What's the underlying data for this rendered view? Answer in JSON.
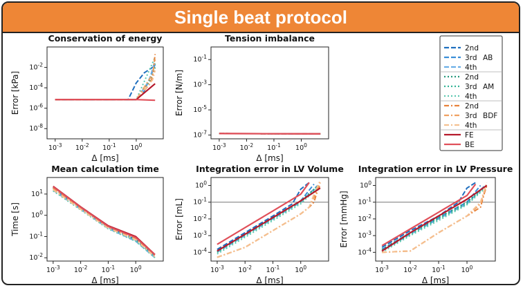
{
  "banner": {
    "title": "Single beat protocol",
    "color": "#ee8636"
  },
  "legend": {
    "entries": [
      {
        "label": "2nd",
        "series": "AB2"
      },
      {
        "label": "3rd",
        "series": "AB3",
        "group": "AB"
      },
      {
        "label": "4th",
        "series": "AB4"
      },
      {
        "label": "2nd",
        "series": "AM2"
      },
      {
        "label": "3rd",
        "series": "AM3",
        "group": "AM"
      },
      {
        "label": "4th",
        "series": "AM4"
      },
      {
        "label": "2nd",
        "series": "BDF2"
      },
      {
        "label": "3rd",
        "series": "BDF3",
        "group": "BDF"
      },
      {
        "label": "4th",
        "series": "BDF4"
      },
      {
        "label": "FE",
        "series": "FE"
      },
      {
        "label": "BE",
        "series": "BE"
      }
    ]
  },
  "chart_data": [
    {
      "id": "energy",
      "type": "line",
      "title": "Conservation of energy",
      "xlabel": "Δ  [ms]",
      "ylabel": "Error [kPa]",
      "xscale": "log",
      "yscale": "log",
      "xlim": [
        0.0005,
        10
      ],
      "ylim": [
        1e-09,
        1
      ],
      "xticks": [
        "10^-3",
        "10^-2",
        "10^-1",
        "10^0"
      ],
      "yticks": [
        "10^-8",
        "10^-6",
        "10^-4",
        "10^-2"
      ],
      "series": [
        {
          "name": "AB2",
          "x": [
            0.001,
            0.5,
            1,
            2,
            3,
            5
          ],
          "y": [
            7e-06,
            7e-06,
            0.0003,
            0.003,
            0.006,
            0.015
          ]
        },
        {
          "name": "AB3",
          "x": [
            0.001,
            1,
            2,
            4,
            5
          ],
          "y": [
            7e-06,
            7e-06,
            5e-05,
            0.004,
            0.02
          ]
        },
        {
          "name": "AB4",
          "x": [
            0.001,
            1,
            3,
            5
          ],
          "y": [
            7e-06,
            7e-06,
            0.0005,
            0.05
          ]
        },
        {
          "name": "AM2",
          "x": [
            0.001,
            1,
            3,
            5
          ],
          "y": [
            7e-06,
            7e-06,
            0.0003,
            0.01
          ]
        },
        {
          "name": "AM3",
          "x": [
            0.001,
            1,
            4,
            5
          ],
          "y": [
            7e-06,
            7e-06,
            0.002,
            0.03
          ]
        },
        {
          "name": "AM4",
          "x": [
            0.001,
            1,
            5
          ],
          "y": [
            7e-06,
            7e-06,
            0.1
          ]
        },
        {
          "name": "BDF2",
          "x": [
            0.001,
            1,
            3,
            4,
            5
          ],
          "y": [
            7e-06,
            7e-06,
            0.0002,
            0.001,
            0.2
          ]
        },
        {
          "name": "BDF3",
          "x": [
            0.001,
            1,
            4,
            5
          ],
          "y": [
            7e-06,
            7e-06,
            0.002,
            0.06
          ]
        },
        {
          "name": "BDF4",
          "x": [
            0.001,
            1,
            4,
            5
          ],
          "y": [
            7e-06,
            7e-06,
            0.0006,
            0.005
          ]
        },
        {
          "name": "FE",
          "x": [
            0.001,
            1,
            5
          ],
          "y": [
            7e-06,
            7e-06,
            0.00025
          ]
        },
        {
          "name": "BE",
          "x": [
            0.001,
            1,
            5
          ],
          "y": [
            7e-06,
            7e-06,
            6e-06
          ]
        }
      ]
    },
    {
      "id": "tension",
      "type": "line",
      "title": "Tension imbalance",
      "xlabel": "Δ  [ms]",
      "ylabel": "Error [N/m]",
      "xscale": "log",
      "yscale": "log",
      "xlim": [
        0.0005,
        10
      ],
      "ylim": [
        5e-08,
        1
      ],
      "xticks": [
        "10^-3",
        "10^-2",
        "10^-1",
        "10^0"
      ],
      "yticks": [
        "10^-7",
        "10^-5",
        "10^-3",
        "10^-1"
      ],
      "series": [
        {
          "name": "AB2",
          "x": [
            0.001,
            5
          ],
          "y": [
            1.3e-07,
            1.25e-07
          ]
        },
        {
          "name": "AB3",
          "x": [
            0.001,
            5
          ],
          "y": [
            1.3e-07,
            1.25e-07
          ]
        },
        {
          "name": "AB4",
          "x": [
            0.001,
            5
          ],
          "y": [
            1.3e-07,
            1.25e-07
          ]
        },
        {
          "name": "AM2",
          "x": [
            0.001,
            5
          ],
          "y": [
            1.3e-07,
            1.25e-07
          ]
        },
        {
          "name": "AM3",
          "x": [
            0.001,
            5
          ],
          "y": [
            1.3e-07,
            1.25e-07
          ]
        },
        {
          "name": "AM4",
          "x": [
            0.001,
            5
          ],
          "y": [
            1.3e-07,
            1.25e-07
          ]
        },
        {
          "name": "BDF2",
          "x": [
            0.001,
            5
          ],
          "y": [
            1.3e-07,
            1.25e-07
          ]
        },
        {
          "name": "BDF3",
          "x": [
            0.001,
            5
          ],
          "y": [
            1.3e-07,
            1.25e-07
          ]
        },
        {
          "name": "BDF4",
          "x": [
            0.001,
            5
          ],
          "y": [
            1.3e-07,
            1.25e-07
          ]
        },
        {
          "name": "FE",
          "x": [
            0.001,
            5
          ],
          "y": [
            1.3e-07,
            1.25e-07
          ]
        },
        {
          "name": "BE",
          "x": [
            0.001,
            5
          ],
          "y": [
            1.3e-07,
            1.25e-07
          ]
        }
      ]
    },
    {
      "id": "time",
      "type": "line",
      "title": "Mean calculation time",
      "xlabel": "Δ  [ms]",
      "ylabel": "Time [s]",
      "xscale": "log",
      "yscale": "log",
      "xlim": [
        0.0006,
        10
      ],
      "ylim": [
        0.007,
        60
      ],
      "xticks": [
        "10^-3",
        "10^-2",
        "10^-1",
        "10^0"
      ],
      "yticks": [
        "10^-2",
        "10^-1",
        "10^0",
        "10^1"
      ],
      "series": [
        {
          "name": "AB2",
          "x": [
            0.001,
            0.01,
            0.1,
            1,
            5
          ],
          "y": [
            20,
            2.3,
            0.28,
            0.07,
            0.012
          ]
        },
        {
          "name": "AB3",
          "x": [
            0.001,
            0.01,
            0.1,
            1,
            5
          ],
          "y": [
            18,
            2.1,
            0.26,
            0.065,
            0.011
          ]
        },
        {
          "name": "AB4",
          "x": [
            0.001,
            0.01,
            0.1,
            1,
            5
          ],
          "y": [
            15,
            1.9,
            0.24,
            0.06,
            0.01
          ]
        },
        {
          "name": "AM2",
          "x": [
            0.001,
            0.01,
            0.1,
            1,
            5
          ],
          "y": [
            21,
            2.4,
            0.3,
            0.08,
            0.013
          ]
        },
        {
          "name": "AM3",
          "x": [
            0.001,
            0.01,
            0.1,
            1,
            5
          ],
          "y": [
            19,
            2.2,
            0.27,
            0.07,
            0.012
          ]
        },
        {
          "name": "AM4",
          "x": [
            0.001,
            0.01,
            0.1,
            1,
            5
          ],
          "y": [
            14,
            1.8,
            0.23,
            0.06,
            0.01
          ]
        },
        {
          "name": "BDF2",
          "x": [
            0.001,
            0.01,
            0.1,
            1,
            5
          ],
          "y": [
            20,
            2.3,
            0.3,
            0.09,
            0.013
          ]
        },
        {
          "name": "BDF3",
          "x": [
            0.001,
            0.01,
            0.1,
            1,
            5
          ],
          "y": [
            18,
            2.1,
            0.28,
            0.08,
            0.012
          ]
        },
        {
          "name": "BDF4",
          "x": [
            0.001,
            0.01,
            0.1,
            1,
            5
          ],
          "y": [
            16,
            1.9,
            0.25,
            0.07,
            0.011
          ]
        },
        {
          "name": "FE",
          "x": [
            0.001,
            0.01,
            0.1,
            1,
            5
          ],
          "y": [
            23,
            2.5,
            0.32,
            0.1,
            0.014
          ]
        },
        {
          "name": "BE",
          "x": [
            0.001,
            0.01,
            0.1,
            1,
            5
          ],
          "y": [
            22,
            2.4,
            0.3,
            0.09,
            0.014
          ]
        }
      ]
    },
    {
      "id": "volume",
      "type": "line",
      "title": "Integration error in LV Volume",
      "xlabel": "Δ  [ms]",
      "ylabel": "Error [mL]",
      "xscale": "log",
      "yscale": "log",
      "xlim": [
        0.0006,
        10
      ],
      "ylim": [
        3e-05,
        3
      ],
      "xticks": [
        "10^-3",
        "10^-2",
        "10^-1",
        "10^0"
      ],
      "yticks": [
        "10^-4",
        "10^-3",
        "10^-2",
        "10^-1",
        "10^0"
      ],
      "hline": 0.1,
      "series": [
        {
          "name": "AB2",
          "x": [
            0.001,
            0.01,
            0.1,
            0.5,
            1,
            2
          ],
          "y": [
            0.00015,
            0.0015,
            0.015,
            0.08,
            0.6,
            1.5
          ]
        },
        {
          "name": "AB3",
          "x": [
            0.001,
            0.01,
            0.1,
            1,
            3
          ],
          "y": [
            0.00012,
            0.0012,
            0.012,
            0.12,
            1.2
          ]
        },
        {
          "name": "AB4",
          "x": [
            0.001,
            0.01,
            0.1,
            1,
            4
          ],
          "y": [
            0.0001,
            0.001,
            0.01,
            0.1,
            1
          ]
        },
        {
          "name": "AM2",
          "x": [
            0.001,
            0.01,
            0.1,
            1,
            4
          ],
          "y": [
            0.00012,
            0.0012,
            0.012,
            0.12,
            0.9
          ]
        },
        {
          "name": "AM3",
          "x": [
            0.001,
            0.01,
            0.1,
            1,
            4
          ],
          "y": [
            0.0001,
            0.001,
            0.01,
            0.1,
            0.8
          ]
        },
        {
          "name": "AM4",
          "x": [
            0.001,
            0.01,
            0.1,
            1,
            4
          ],
          "y": [
            8e-05,
            0.0008,
            0.008,
            0.08,
            0.7
          ]
        },
        {
          "name": "BDF2",
          "x": [
            0.001,
            0.01,
            0.1,
            1,
            2,
            3,
            4,
            5
          ],
          "y": [
            5e-05,
            0.0002,
            0.002,
            0.02,
            0.05,
            0.1,
            0.5,
            1
          ]
        },
        {
          "name": "BDF3",
          "x": [
            0.001,
            0.01,
            0.1,
            1,
            2,
            3,
            5
          ],
          "y": [
            5e-05,
            0.0002,
            0.002,
            0.02,
            0.05,
            0.2,
            1.5
          ]
        },
        {
          "name": "BDF4",
          "x": [
            0.001,
            0.01,
            0.1,
            1,
            2,
            3,
            5
          ],
          "y": [
            5e-05,
            0.0002,
            0.002,
            0.02,
            0.05,
            0.3,
            2
          ]
        },
        {
          "name": "FE",
          "x": [
            0.001,
            0.01,
            0.1,
            1,
            5
          ],
          "y": [
            0.00012,
            0.0012,
            0.012,
            0.12,
            0.7
          ]
        },
        {
          "name": "BE",
          "x": [
            0.001,
            0.01,
            0.1,
            1,
            2
          ],
          "y": [
            0.0003,
            0.003,
            0.03,
            0.3,
            1.5
          ]
        }
      ]
    },
    {
      "id": "pressure",
      "type": "line",
      "title": "Integration error in LV Pressure",
      "xlabel": "Δ  [ms]",
      "ylabel": "Error [mmHg]",
      "xscale": "log",
      "yscale": "log",
      "xlim": [
        0.0006,
        10
      ],
      "ylim": [
        3e-05,
        3
      ],
      "xticks": [
        "10^-3",
        "10^-2",
        "10^-1",
        "10^0"
      ],
      "yticks": [
        "10^-4",
        "10^-3",
        "10^-2",
        "10^-1",
        "10^0"
      ],
      "hline": 0.1,
      "series": [
        {
          "name": "AB2",
          "x": [
            0.001,
            0.01,
            0.1,
            0.5,
            1,
            2
          ],
          "y": [
            0.0002,
            0.002,
            0.015,
            0.1,
            0.7,
            1.5
          ]
        },
        {
          "name": "AB3",
          "x": [
            0.001,
            0.01,
            0.1,
            1,
            3
          ],
          "y": [
            0.00015,
            0.0015,
            0.012,
            0.1,
            1
          ]
        },
        {
          "name": "AB4",
          "x": [
            0.001,
            0.01,
            0.1,
            1,
            4
          ],
          "y": [
            0.00012,
            0.0012,
            0.01,
            0.08,
            0.9
          ]
        },
        {
          "name": "AM2",
          "x": [
            0.001,
            0.01,
            0.1,
            1,
            4
          ],
          "y": [
            0.00015,
            0.0015,
            0.012,
            0.1,
            0.8
          ]
        },
        {
          "name": "AM3",
          "x": [
            0.001,
            0.01,
            0.1,
            1,
            4
          ],
          "y": [
            0.00012,
            0.0012,
            0.01,
            0.08,
            0.7
          ]
        },
        {
          "name": "AM4",
          "x": [
            0.001,
            0.01,
            0.1,
            1,
            4
          ],
          "y": [
            0.0001,
            0.001,
            0.008,
            0.07,
            0.6
          ]
        },
        {
          "name": "BDF2",
          "x": [
            0.001,
            0.01,
            0.1,
            1,
            3,
            4,
            5
          ],
          "y": [
            0.0001,
            0.00012,
            0.0015,
            0.015,
            0.05,
            0.3,
            1
          ]
        },
        {
          "name": "BDF3",
          "x": [
            0.001,
            0.01,
            0.1,
            1,
            3,
            5
          ],
          "y": [
            0.0001,
            0.00012,
            0.0015,
            0.015,
            0.08,
            1.2
          ]
        },
        {
          "name": "BDF4",
          "x": [
            0.001,
            0.01,
            0.1,
            1,
            3,
            5
          ],
          "y": [
            0.0001,
            0.00012,
            0.0015,
            0.015,
            0.1,
            1.5
          ]
        },
        {
          "name": "FE",
          "x": [
            0.001,
            0.01,
            0.1,
            1,
            5
          ],
          "y": [
            0.00012,
            0.0015,
            0.015,
            0.15,
            1
          ]
        },
        {
          "name": "BE",
          "x": [
            0.001,
            0.01,
            0.1,
            1,
            2
          ],
          "y": [
            0.00025,
            0.0025,
            0.025,
            0.25,
            1.2
          ]
        }
      ]
    }
  ],
  "styles": {
    "AB2": {
      "color": "#1f6fbf",
      "dash": "7 3",
      "width": 2
    },
    "AB3": {
      "color": "#3a8ed8",
      "dash": "7 3",
      "width": 2
    },
    "AB4": {
      "color": "#6aaee6",
      "dash": "7 3",
      "width": 2
    },
    "AM2": {
      "color": "#23977a",
      "dash": "2 3",
      "width": 2
    },
    "AM3": {
      "color": "#30b294",
      "dash": "2 3",
      "width": 2
    },
    "AM4": {
      "color": "#5cc8b0",
      "dash": "2 3",
      "width": 2
    },
    "BDF2": {
      "color": "#e8823a",
      "dash": "7 3 2 3",
      "width": 2
    },
    "BDF3": {
      "color": "#f0a060",
      "dash": "7 3 2 3",
      "width": 2
    },
    "BDF4": {
      "color": "#f5c090",
      "dash": "7 3 2 3",
      "width": 2
    },
    "FE": {
      "color": "#b5192b",
      "dash": "",
      "width": 2.2
    },
    "BE": {
      "color": "#e0505a",
      "dash": "",
      "width": 2.2
    }
  }
}
